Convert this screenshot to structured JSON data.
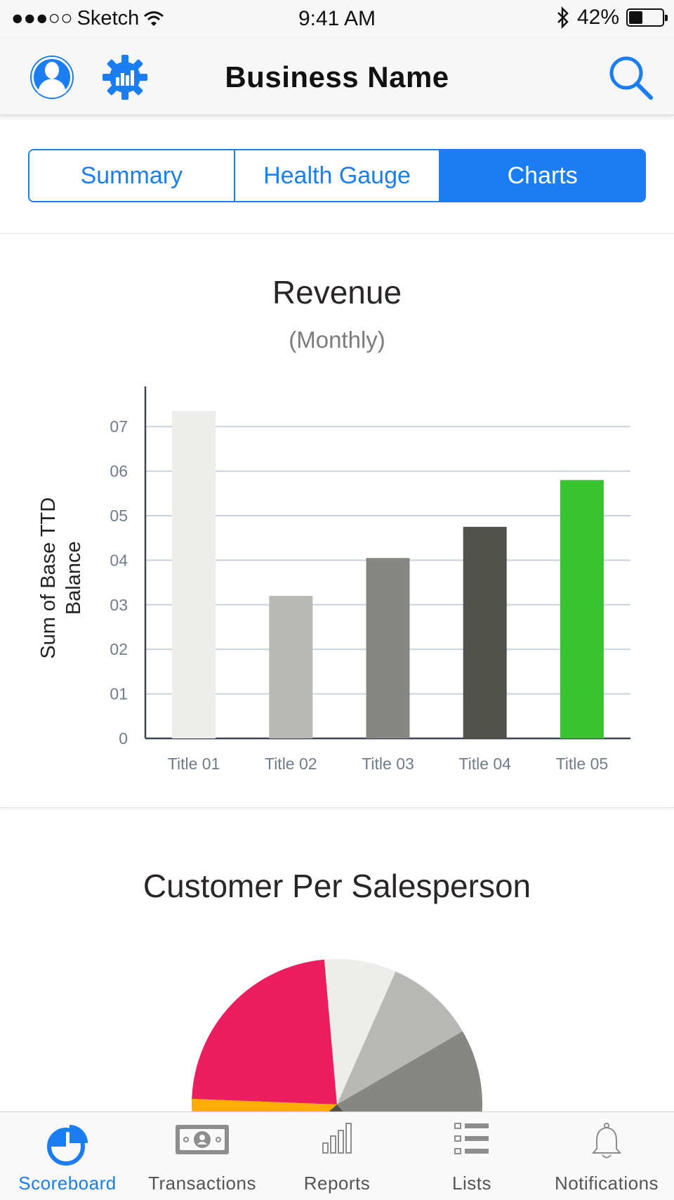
{
  "status_bar": {
    "signal": "●●●○○",
    "carrier": "Sketch",
    "time": "9:41 AM",
    "battery_percent": "42%",
    "battery_level": 0.42
  },
  "nav": {
    "title": "Business Name",
    "left_icons": [
      "profile-icon",
      "gear-chart-icon"
    ],
    "right_icon": "search-icon"
  },
  "segments": {
    "items": [
      "Summary",
      "Health Gauge",
      "Charts"
    ],
    "selected": "Charts"
  },
  "revenue_card": {
    "title": "Revenue",
    "subtitle": "(Monthly)"
  },
  "chart_data": [
    {
      "type": "bar",
      "title": "Revenue",
      "subtitle": "(Monthly)",
      "ylabel": [
        "Sum of Base TTD",
        "Balance"
      ],
      "xlabel": "",
      "categories": [
        "Title 01",
        "Title 02",
        "Title 03",
        "Title 04",
        "Title 05"
      ],
      "values": [
        7.35,
        3.2,
        4.05,
        4.75,
        5.8
      ],
      "colors": [
        "#ededeb",
        "#b8b8b6",
        "#868682",
        "#52524c",
        "#38c431"
      ],
      "yticks": [
        "0",
        "01",
        "02",
        "03",
        "04",
        "05",
        "06",
        "07"
      ],
      "ylim": [
        0,
        7.9
      ],
      "grid": true
    },
    {
      "type": "pie",
      "title": "Customer Per Salesperson",
      "slices": [
        {
          "value": 23,
          "color": "#ec1e5f"
        },
        {
          "value": 8,
          "color": "#ededeb"
        },
        {
          "value": 10,
          "color": "#b8b8b6"
        },
        {
          "value": 22,
          "color": "#868682"
        },
        {
          "value": 25,
          "color": "#52524c"
        },
        {
          "value": 12,
          "color": "#ffad00"
        }
      ]
    }
  ],
  "section2": {
    "title": "Customer Per Salesperson"
  },
  "tabbar": {
    "items": [
      {
        "label": "Scoreboard",
        "icon": "pie-chart-icon",
        "active": true
      },
      {
        "label": "Transactions",
        "icon": "banknote-icon",
        "active": false
      },
      {
        "label": "Reports",
        "icon": "bar-graph-icon",
        "active": false
      },
      {
        "label": "Lists",
        "icon": "list-icon",
        "active": false
      },
      {
        "label": "Notifications",
        "icon": "bell-icon",
        "active": false
      }
    ]
  },
  "colors": {
    "accent": "#1a7ef2",
    "grid": "#c9d2dc",
    "axis": "#3a4450"
  }
}
